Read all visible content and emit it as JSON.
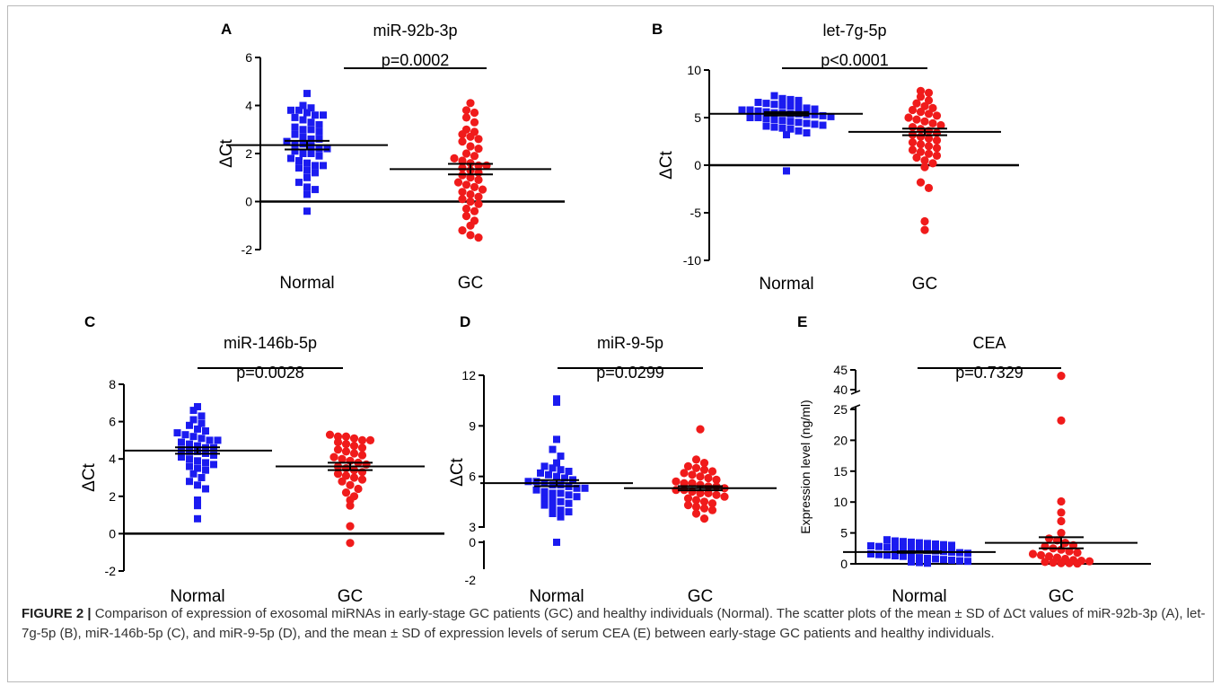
{
  "figure_label": "FIGURE 2 |",
  "caption": " Comparison of expression of exosomal miRNAs in early-stage GC patients (GC) and healthy individuals (Normal). The scatter plots of the mean ± SD of ΔCt values of miR-92b-3p (A), let-7g-5p (B), miR-146b-5p (C), and miR-9-5p (D), and the mean ± SD of expression levels of serum CEA (E) between early-stage GC patients and healthy individuals.",
  "colors": {
    "normal": "#1b1bf0",
    "gc": "#f01b1b",
    "axis": "#000000",
    "caption": "#333333"
  },
  "chart_data": [
    {
      "panel": "A",
      "type": "scatter",
      "title": "miR-92b-3p",
      "pvalue": "p=0.0002",
      "ylabel": "ΔCt",
      "ylim": [
        -2,
        6
      ],
      "yticks": [
        -2,
        0,
        2,
        4,
        6
      ],
      "categories": [
        "Normal",
        "GC"
      ],
      "series": [
        {
          "name": "Normal",
          "mean": 2.35,
          "sem": 0.18,
          "values": [
            4.5,
            4.0,
            3.9,
            3.8,
            3.8,
            3.7,
            3.6,
            3.6,
            3.5,
            3.4,
            3.3,
            3.2,
            3.1,
            3.0,
            3.0,
            2.9,
            2.8,
            2.7,
            2.6,
            2.6,
            2.5,
            2.4,
            2.4,
            2.3,
            2.2,
            2.2,
            2.1,
            2.0,
            2.0,
            1.9,
            1.8,
            1.7,
            1.6,
            1.5,
            1.5,
            1.4,
            1.3,
            1.2,
            1.0,
            0.8,
            0.6,
            0.5,
            0.3,
            -0.4
          ]
        },
        {
          "name": "GC",
          "mean": 1.35,
          "sem": 0.22,
          "values": [
            4.1,
            3.8,
            3.7,
            3.5,
            3.3,
            3.0,
            2.9,
            2.8,
            2.7,
            2.6,
            2.5,
            2.3,
            2.2,
            2.0,
            1.9,
            1.8,
            1.7,
            1.6,
            1.5,
            1.5,
            1.4,
            1.3,
            1.2,
            1.1,
            1.0,
            0.9,
            0.8,
            0.7,
            0.6,
            0.5,
            0.4,
            0.3,
            0.2,
            0.1,
            0.0,
            -0.1,
            -0.3,
            -0.4,
            -0.6,
            -0.8,
            -1.0,
            -1.2,
            -1.4,
            -1.5
          ]
        }
      ]
    },
    {
      "panel": "B",
      "type": "scatter",
      "title": "let-7g-5p",
      "pvalue": "p<0.0001",
      "ylabel": "ΔCt",
      "ylim": [
        -10,
        10
      ],
      "yticks": [
        -10,
        -5,
        0,
        5,
        10
      ],
      "categories": [
        "Normal",
        "GC"
      ],
      "series": [
        {
          "name": "Normal",
          "mean": 5.4,
          "sem": 0.18,
          "values": [
            7.3,
            7.0,
            6.9,
            6.8,
            6.6,
            6.5,
            6.4,
            6.3,
            6.2,
            6.1,
            6.0,
            5.9,
            5.8,
            5.8,
            5.7,
            5.6,
            5.5,
            5.5,
            5.4,
            5.4,
            5.3,
            5.3,
            5.2,
            5.1,
            5.0,
            5.0,
            4.9,
            4.8,
            4.7,
            4.6,
            4.5,
            4.4,
            4.3,
            4.2,
            4.1,
            4.0,
            3.9,
            3.8,
            3.6,
            3.4,
            3.2,
            -0.6
          ]
        },
        {
          "name": "GC",
          "mean": 3.5,
          "sem": 0.35,
          "values": [
            7.8,
            7.6,
            7.2,
            6.8,
            6.5,
            6.2,
            6.0,
            5.8,
            5.6,
            5.4,
            5.2,
            5.0,
            4.8,
            4.6,
            4.4,
            4.2,
            4.0,
            3.8,
            3.6,
            3.4,
            3.2,
            3.0,
            2.8,
            2.6,
            2.4,
            2.2,
            2.0,
            1.8,
            1.6,
            1.4,
            1.2,
            1.0,
            0.8,
            0.5,
            0.2,
            -0.2,
            -1.8,
            -2.4,
            -5.9,
            -6.8
          ]
        }
      ]
    },
    {
      "panel": "C",
      "type": "scatter",
      "title": "miR-146b-5p",
      "pvalue": "p=0.0028",
      "ylabel": "ΔCt",
      "ylim": [
        -2,
        8
      ],
      "yticks": [
        -2,
        0,
        2,
        4,
        6,
        8
      ],
      "categories": [
        "Normal",
        "GC"
      ],
      "series": [
        {
          "name": "Normal",
          "mean": 4.45,
          "sem": 0.17,
          "values": [
            6.8,
            6.6,
            6.3,
            6.1,
            5.9,
            5.8,
            5.6,
            5.5,
            5.4,
            5.3,
            5.2,
            5.1,
            5.0,
            5.0,
            4.9,
            4.8,
            4.7,
            4.6,
            4.6,
            4.5,
            4.4,
            4.4,
            4.3,
            4.2,
            4.1,
            4.0,
            3.9,
            3.8,
            3.7,
            3.6,
            3.5,
            3.4,
            3.2,
            3.0,
            2.8,
            2.6,
            2.4,
            1.8,
            1.5,
            0.8
          ]
        },
        {
          "name": "GC",
          "mean": 3.6,
          "sem": 0.2,
          "values": [
            5.3,
            5.2,
            5.2,
            5.1,
            5.0,
            5.0,
            4.9,
            4.8,
            4.7,
            4.6,
            4.5,
            4.4,
            4.3,
            4.2,
            4.1,
            4.0,
            3.9,
            3.8,
            3.7,
            3.6,
            3.5,
            3.4,
            3.3,
            3.2,
            3.1,
            3.0,
            2.9,
            2.8,
            2.6,
            2.4,
            2.2,
            2.0,
            1.8,
            1.5,
            0.4,
            -0.5
          ]
        }
      ]
    },
    {
      "panel": "D",
      "type": "scatter",
      "title": "miR-9-5p",
      "pvalue": "p=0.0299",
      "ylabel": "ΔCt",
      "ylim": [
        -2,
        12
      ],
      "yticks": [
        0,
        3,
        6,
        9,
        12
      ],
      "ybreak": [
        0,
        3
      ],
      "extra_ytick": "-2",
      "categories": [
        "Normal",
        "GC"
      ],
      "series": [
        {
          "name": "Normal",
          "mean": 5.6,
          "sem": 0.18,
          "values": [
            10.6,
            10.4,
            8.2,
            7.6,
            7.2,
            6.8,
            6.6,
            6.5,
            6.4,
            6.3,
            6.2,
            6.1,
            6.0,
            5.9,
            5.8,
            5.7,
            5.7,
            5.6,
            5.5,
            5.5,
            5.4,
            5.3,
            5.3,
            5.2,
            5.1,
            5.0,
            5.0,
            4.9,
            4.8,
            4.7,
            4.6,
            4.5,
            4.4,
            4.3,
            4.2,
            4.0,
            3.9,
            3.8,
            3.6,
            0.0
          ]
        },
        {
          "name": "GC",
          "mean": 5.3,
          "sem": 0.12,
          "values": [
            8.8,
            7.0,
            6.8,
            6.6,
            6.5,
            6.4,
            6.3,
            6.2,
            6.1,
            6.0,
            5.9,
            5.8,
            5.7,
            5.6,
            5.6,
            5.5,
            5.4,
            5.4,
            5.3,
            5.2,
            5.2,
            5.1,
            5.0,
            5.0,
            4.9,
            4.8,
            4.7,
            4.6,
            4.5,
            4.4,
            4.3,
            4.2,
            4.1,
            4.0,
            3.8,
            3.5
          ]
        }
      ]
    },
    {
      "panel": "E",
      "type": "scatter",
      "title": "CEA",
      "pvalue": "p=0.7329",
      "ylabel": "Expression level (ng/ml)",
      "ylim": [
        0,
        45
      ],
      "yticks": [
        0,
        5,
        10,
        15,
        20,
        25,
        40,
        45
      ],
      "ybreak": [
        25,
        40
      ],
      "categories": [
        "Normal",
        "GC"
      ],
      "series": [
        {
          "name": "Normal",
          "mean": 1.9,
          "sem": 0.12,
          "values": [
            3.9,
            3.7,
            3.6,
            3.5,
            3.4,
            3.3,
            3.2,
            3.1,
            3.0,
            2.9,
            2.8,
            2.7,
            2.6,
            2.5,
            2.4,
            2.3,
            2.2,
            2.1,
            2.0,
            1.9,
            1.8,
            1.7,
            1.6,
            1.5,
            1.4,
            1.3,
            1.2,
            1.1,
            1.0,
            0.9,
            0.8,
            0.7,
            0.6,
            0.5,
            0.4,
            0.3,
            0.2,
            0.1
          ]
        },
        {
          "name": "GC",
          "mean": 3.4,
          "sem": 0.9,
          "values": [
            43.5,
            23.2,
            10.1,
            8.3,
            6.9,
            5.0,
            4.1,
            3.8,
            3.4,
            3.0,
            2.8,
            2.5,
            2.3,
            2.0,
            1.8,
            1.6,
            1.4,
            1.2,
            1.0,
            0.8,
            0.6,
            0.5,
            0.4,
            0.3,
            0.2,
            0.1,
            0.1,
            0.05
          ]
        }
      ]
    }
  ]
}
